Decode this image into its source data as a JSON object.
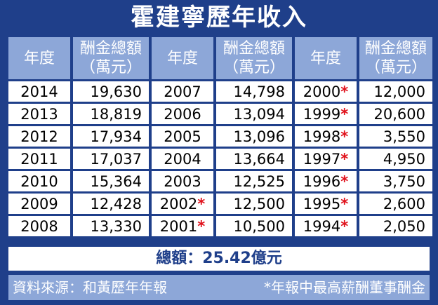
{
  "title": "霍建寧歷年收入",
  "headers": {
    "year": "年度",
    "pay_line1": "酬金總額",
    "pay_line2": "（萬元）"
  },
  "rows": [
    {
      "y1": "2014",
      "v1": "19,630",
      "y2": "2007",
      "v2": "14,798",
      "y3": "2000",
      "v3": "12,000"
    },
    {
      "y1": "2013",
      "v1": "18,819",
      "y2": "2006",
      "v2": "13,094",
      "y3": "1999",
      "v3": "20,600"
    },
    {
      "y1": "2012",
      "v1": "17,934",
      "y2": "2005",
      "v2": "13,096",
      "y3": "1998",
      "v3": "3,550"
    },
    {
      "y1": "2011",
      "v1": "17,037",
      "y2": "2004",
      "v2": "13,664",
      "y3": "1997",
      "v3": "4,950"
    },
    {
      "y1": "2010",
      "v1": "15,364",
      "y2": "2003",
      "v2": "12,525",
      "y3": "1996",
      "v3": "3,750"
    },
    {
      "y1": "2009",
      "v1": "12,428",
      "y2": "2002",
      "v2": "12,500",
      "y3": "1995",
      "v3": "2,600"
    },
    {
      "y1": "2008",
      "v1": "13,330",
      "y2": "2001",
      "v2": "10,500",
      "y3": "1994",
      "v3": "2,050"
    }
  ],
  "star_mark": "*",
  "total": "總額：25.42億元",
  "footer": {
    "source": "資料來源：和黃歷年年報",
    "note": "*年報中最高薪酬董事酬金"
  },
  "colors": {
    "frame": "#1f3f8a",
    "header_cell": "#8da7d8",
    "star": "#e0101a"
  }
}
